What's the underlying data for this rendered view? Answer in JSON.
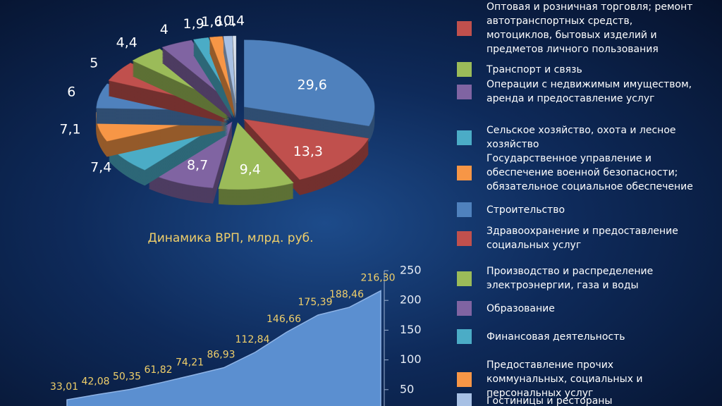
{
  "chart_data": [
    {
      "type": "pie",
      "categories": [
        null,
        "Оптовая и розничная торговля; ремонт автотранспортных средств, мотоциклов, бытовых изделий и предметов личного пользования",
        "Транспорт и связь",
        "Операции с недвижимым имуществом, аренда и предоставление услуг",
        "Сельское хозяйство, охота и лесное хозяйство",
        "Государственное управление и обеспечение военной безопасности; обязательное социальное обеспечение",
        "Строительство",
        "Здравоохранение и предоставление социальных услуг",
        "Производство и распределение электроэнергии, газа и воды",
        "Образование",
        "Финансовая деятельность",
        "Предоставление прочих коммунальных, социальных и персональных услуг",
        "Гостиницы и рестораны",
        null
      ],
      "values": [
        29.6,
        13.3,
        9.4,
        8.7,
        7.4,
        7.1,
        6,
        5,
        4.4,
        4,
        1.9,
        1.6,
        1.1,
        0.4
      ],
      "value_labels": [
        "29,6",
        "13,3",
        "9,4",
        "8,7",
        "7,4",
        "7,1",
        "6",
        "5",
        "4,4",
        "4",
        "1,9",
        "1,6",
        "1,1",
        "0,4"
      ],
      "colors": [
        "#4f81bd",
        "#c0504d",
        "#9bbb59",
        "#8064a2",
        "#4bacc6",
        "#f79646",
        "#4f81bd",
        "#c0504d",
        "#9bbb59",
        "#8064a2",
        "#4bacc6",
        "#f79646",
        "#a7c0e4",
        "#d9e2ef"
      ]
    },
    {
      "type": "area",
      "title": "Динамика ВРП, млрд. руб.",
      "values": [
        33.01,
        42.08,
        50.35,
        61.82,
        74.21,
        86.93,
        112.84,
        146.66,
        175.39,
        188.46,
        216.3
      ],
      "value_labels": [
        "33,01",
        "42,08",
        "50,35",
        "61,82",
        "74,21",
        "86,93",
        "112,84",
        "146,66",
        "175,39",
        "188,46",
        "216,30"
      ],
      "color": "#5b8fd0",
      "ylim": [
        0,
        250
      ],
      "yticks": [
        50,
        100,
        150,
        200,
        250
      ]
    }
  ]
}
